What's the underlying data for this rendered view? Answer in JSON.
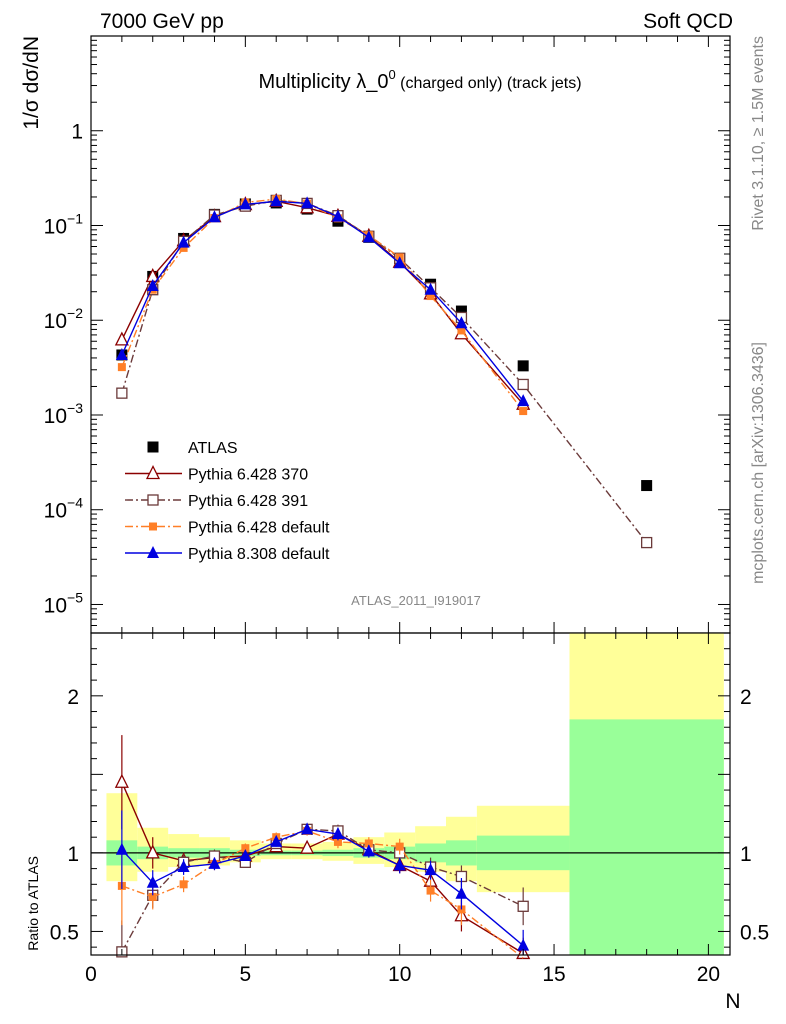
{
  "header": {
    "left": "7000 GeV pp",
    "right": "Soft QCD"
  },
  "chart_data": [
    {
      "type": "scatter",
      "title": "Multiplicity λ_0",
      "title_sup": "0",
      "title_suffix": " (charged only) (track jets)",
      "ylabel": "1/σ dσ/dN",
      "yscale": "log",
      "ylim": [
        5e-06,
        10
      ],
      "xlim": [
        0,
        20.7
      ],
      "watermark": "ATLAS_2011_I919017",
      "side_label_top": "Rivet 3.1.10, ≥ 1.5M events",
      "side_label_bottom": "mcplots.cern.ch [arXiv:1306.3436]",
      "yticks": [
        {
          "v": 1e-05,
          "base": "10",
          "exp": "−5"
        },
        {
          "v": 0.0001,
          "base": "10",
          "exp": "−4"
        },
        {
          "v": 0.001,
          "base": "10",
          "exp": "−3"
        },
        {
          "v": 0.01,
          "base": "10",
          "exp": "−2"
        },
        {
          "v": 0.1,
          "base": "10",
          "exp": "−1"
        },
        {
          "v": 1,
          "base": "1",
          "exp": ""
        }
      ],
      "legend": {
        "position": "middle-left",
        "entries": [
          {
            "label": "ATLAS"
          },
          {
            "label": "Pythia 6.428 370"
          },
          {
            "label": "Pythia 6.428 391"
          },
          {
            "label": "Pythia 6.428 default"
          },
          {
            "label": "Pythia 8.308 default"
          }
        ]
      },
      "series": [
        {
          "name": "ATLAS",
          "color": "#000000",
          "marker": "square-filled",
          "x": [
            1,
            2,
            3,
            4,
            5,
            6,
            7,
            8,
            9,
            10,
            11,
            12,
            14,
            18
          ],
          "y": [
            0.0043,
            0.029,
            0.073,
            0.131,
            0.169,
            0.173,
            0.149,
            0.111,
            0.075,
            0.045,
            0.024,
            0.0125,
            0.0033,
            0.00018
          ]
        },
        {
          "name": "Pythia 6.428 370",
          "color": "#8b0000",
          "marker": "triangle-open",
          "line": "solid",
          "x": [
            1,
            2,
            3,
            4,
            5,
            6,
            7,
            8,
            9,
            10,
            11,
            12,
            14
          ],
          "y": [
            0.0062,
            0.029,
            0.069,
            0.124,
            0.166,
            0.18,
            0.154,
            0.125,
            0.077,
            0.041,
            0.019,
            0.0072,
            0.0013
          ]
        },
        {
          "name": "Pythia 6.428 391",
          "color": "#6b3a3a",
          "marker": "square-open",
          "line": "dashdot",
          "x": [
            1,
            2,
            3,
            4,
            5,
            6,
            7,
            8,
            9,
            10,
            11,
            12,
            14,
            18
          ],
          "y": [
            0.0017,
            0.021,
            0.068,
            0.129,
            0.16,
            0.184,
            0.171,
            0.127,
            0.077,
            0.045,
            0.022,
            0.0107,
            0.0021,
            4.5e-05
          ]
        },
        {
          "name": "Pythia 6.428 default",
          "color": "#ff7f27",
          "marker": "square-filled-small",
          "line": "dashdot",
          "x": [
            1,
            2,
            3,
            4,
            5,
            6,
            7,
            8,
            9,
            10,
            11,
            12,
            14
          ],
          "y": [
            0.0032,
            0.021,
            0.058,
            0.12,
            0.175,
            0.19,
            0.17,
            0.119,
            0.079,
            0.046,
            0.018,
            0.0078,
            0.0011
          ]
        },
        {
          "name": "Pythia 8.308 default",
          "color": "#0000e0",
          "marker": "triangle-filled",
          "line": "solid",
          "x": [
            1,
            2,
            3,
            4,
            5,
            6,
            7,
            8,
            9,
            10,
            11,
            12,
            14
          ],
          "y": [
            0.0043,
            0.023,
            0.066,
            0.122,
            0.167,
            0.18,
            0.171,
            0.124,
            0.075,
            0.04,
            0.021,
            0.0093,
            0.0014
          ]
        }
      ]
    },
    {
      "type": "scatter",
      "ylabel": "Ratio to ATLAS",
      "xlabel": "N",
      "ylim": [
        0.35,
        2.4
      ],
      "xlim": [
        0,
        20.7
      ],
      "xticks": [
        0,
        5,
        10,
        15,
        20
      ],
      "yticks": [
        0.5,
        1,
        2
      ],
      "bands": {
        "edges": [
          0.5,
          1.5,
          2.5,
          3.5,
          4.5,
          5.5,
          6.5,
          7.5,
          8.5,
          9.5,
          10.5,
          11.5,
          12.5,
          15.5,
          20.5
        ],
        "stat": [
          [
            0.92,
            1.08
          ],
          [
            0.96,
            1.04
          ],
          [
            0.97,
            1.03
          ],
          [
            0.97,
            1.03
          ],
          [
            0.98,
            1.02
          ],
          [
            0.985,
            1.015
          ],
          [
            0.985,
            1.015
          ],
          [
            0.98,
            1.02
          ],
          [
            0.97,
            1.03
          ],
          [
            0.96,
            1.04
          ],
          [
            0.94,
            1.06
          ],
          [
            0.92,
            1.08
          ],
          [
            0.89,
            1.11
          ],
          [
            0.25,
            1.85
          ]
        ],
        "total": [
          [
            0.82,
            1.38
          ],
          [
            0.88,
            1.16
          ],
          [
            0.91,
            1.12
          ],
          [
            0.92,
            1.1
          ],
          [
            0.94,
            1.08
          ],
          [
            0.96,
            1.06
          ],
          [
            0.96,
            1.06
          ],
          [
            0.95,
            1.07
          ],
          [
            0.93,
            1.1
          ],
          [
            0.91,
            1.13
          ],
          [
            0.88,
            1.17
          ],
          [
            0.82,
            1.23
          ],
          [
            0.75,
            1.3
          ],
          [
            0.25,
            2.5
          ]
        ],
        "stat_color": "#99ff99",
        "total_color": "#ffff99"
      },
      "series": [
        {
          "name": "Pythia 6.428 370",
          "color": "#8b0000",
          "marker": "triangle-open",
          "line": "solid",
          "x": [
            1,
            2,
            3,
            4,
            5,
            6,
            7,
            8,
            9,
            10,
            11,
            12,
            14
          ],
          "y": [
            1.45,
            1.0,
            0.95,
            0.97,
            0.98,
            1.04,
            1.03,
            1.12,
            1.02,
            0.92,
            0.82,
            0.6,
            0.36
          ],
          "err": [
            0.3,
            0.1,
            0.05,
            0.04,
            0.03,
            0.03,
            0.03,
            0.04,
            0.04,
            0.05,
            0.07,
            0.1,
            0.1
          ]
        },
        {
          "name": "Pythia 6.428 391",
          "color": "#6b3a3a",
          "marker": "square-open",
          "line": "dashdot",
          "x": [
            1,
            2,
            3,
            4,
            5,
            6,
            7,
            8,
            9,
            10,
            11,
            12,
            14
          ],
          "y": [
            0.37,
            0.73,
            0.94,
            0.98,
            0.94,
            1.06,
            1.15,
            1.14,
            1.02,
            1.0,
            0.91,
            0.85,
            0.66
          ],
          "err": [
            0.2,
            0.08,
            0.05,
            0.04,
            0.03,
            0.03,
            0.03,
            0.04,
            0.04,
            0.05,
            0.06,
            0.07,
            0.12
          ]
        },
        {
          "name": "Pythia 6.428 default",
          "color": "#ff7f27",
          "marker": "square-filled-small",
          "line": "dashdot",
          "x": [
            1,
            2,
            3,
            4,
            5,
            6,
            7,
            8,
            9,
            10,
            11,
            12,
            14
          ],
          "y": [
            0.79,
            0.72,
            0.8,
            0.93,
            1.03,
            1.1,
            1.14,
            1.07,
            1.06,
            1.04,
            0.76,
            0.64,
            0.33
          ],
          "err": [
            0.25,
            0.08,
            0.05,
            0.04,
            0.03,
            0.03,
            0.03,
            0.04,
            0.04,
            0.05,
            0.07,
            0.1,
            0.1
          ]
        },
        {
          "name": "Pythia 8.308 default",
          "color": "#0000e0",
          "marker": "triangle-filled",
          "line": "solid",
          "x": [
            1,
            2,
            3,
            4,
            5,
            6,
            7,
            8,
            9,
            10,
            11,
            12,
            14
          ],
          "y": [
            1.02,
            0.81,
            0.91,
            0.93,
            0.98,
            1.07,
            1.15,
            1.12,
            1.01,
            0.92,
            0.89,
            0.74,
            0.41
          ],
          "err": [
            0.25,
            0.08,
            0.05,
            0.04,
            0.03,
            0.03,
            0.03,
            0.04,
            0.04,
            0.05,
            0.06,
            0.1,
            0.1
          ]
        }
      ]
    }
  ]
}
